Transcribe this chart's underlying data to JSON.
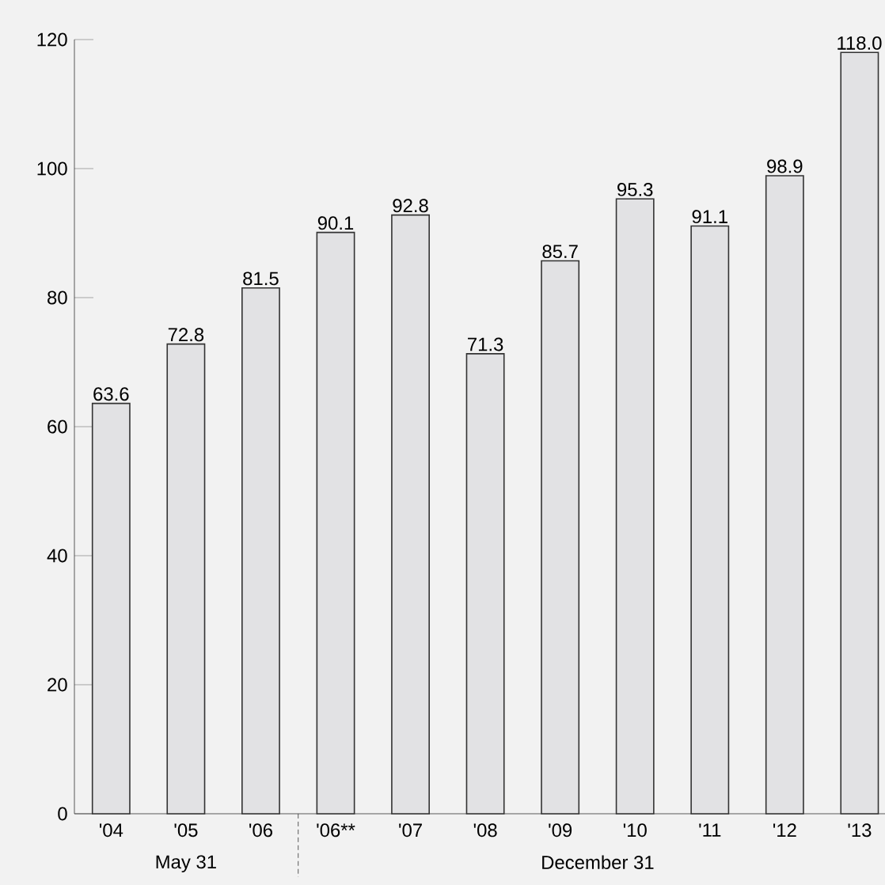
{
  "chart_data": {
    "type": "bar",
    "categories": [
      "'04",
      "'05",
      "'06",
      "'06**",
      "'07",
      "'08",
      "'09",
      "'10",
      "'11",
      "'12",
      "'13"
    ],
    "values": [
      63.6,
      72.8,
      81.5,
      90.1,
      92.8,
      71.3,
      85.7,
      95.3,
      91.1,
      98.9,
      118.0
    ],
    "color": "#e2e2e4",
    "value_labels": [
      "63.6",
      "72.8",
      "81.5",
      "90.1",
      "92.8",
      "71.3",
      "85.7",
      "95.3",
      "91.1",
      "98.9",
      "118.0"
    ],
    "ylim": [
      0,
      120
    ],
    "yticks": [
      0,
      20,
      40,
      60,
      80,
      100,
      120
    ],
    "grid": false,
    "annotations": [
      "May 31",
      "December 31"
    ]
  }
}
